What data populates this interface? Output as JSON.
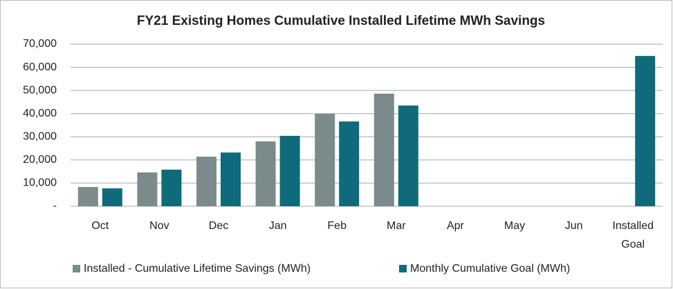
{
  "chart_data": {
    "type": "bar",
    "title": "FY21 Existing Homes Cumulative Installed Lifetime MWh Savings",
    "categories": [
      "Oct",
      "Nov",
      "Dec",
      "Jan",
      "Feb",
      "Mar",
      "Apr",
      "May",
      "Jun",
      "Installed Goal"
    ],
    "series": [
      {
        "name": "Installed - Cumulative Lifetime Savings (MWh)",
        "color": "#7b8a8b",
        "values": [
          8300,
          14600,
          21400,
          28000,
          39900,
          48600,
          null,
          null,
          null,
          null
        ]
      },
      {
        "name": "Monthly Cumulative Goal (MWh)",
        "color": "#0f6b7b",
        "values": [
          7700,
          15800,
          23200,
          30400,
          36600,
          43500,
          null,
          null,
          null,
          64900
        ]
      }
    ],
    "ylim": [
      0,
      70000
    ],
    "yticks": [
      {
        "value": 0,
        "label": "-"
      },
      {
        "value": 10000,
        "label": "10,000"
      },
      {
        "value": 20000,
        "label": "20,000"
      },
      {
        "value": 30000,
        "label": "30,000"
      },
      {
        "value": 40000,
        "label": "40,000"
      },
      {
        "value": 50000,
        "label": "50,000"
      },
      {
        "value": 60000,
        "label": "60,000"
      },
      {
        "value": 70000,
        "label": "70,000"
      }
    ],
    "grid": true,
    "legend": "bottom"
  }
}
